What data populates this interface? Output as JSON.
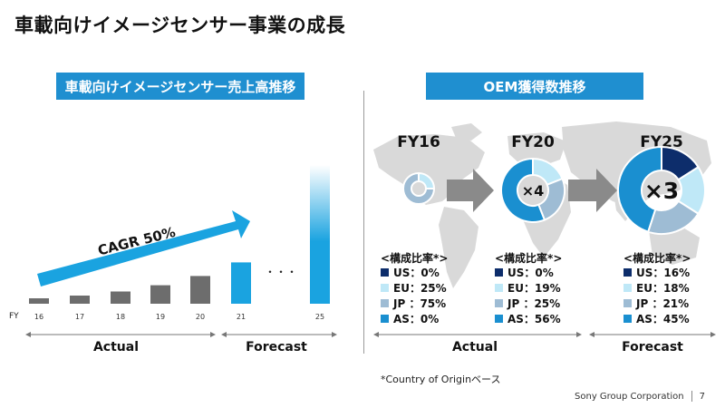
{
  "page": {
    "title": "車載向けイメージセンサー事業の成長",
    "footnote": "*Country of Originベース",
    "footer_company": "Sony Group Corporation",
    "page_number": "7"
  },
  "colors": {
    "banner": "#1f8fd0",
    "actual_bar": "#6d6d6d",
    "forecast_bar": "#1aa3e0",
    "US": "#0d2d6b",
    "EU": "#bfe8f7",
    "JP": "#9ebcd4",
    "AS": "#1a8fd0",
    "arrow_gray": "#8a8a8a",
    "map": "#d9d9d9"
  },
  "chart_data": [
    {
      "type": "bar",
      "title": "車載向けイメージセンサー売上高推移",
      "x_axis_label": "FY",
      "categories": [
        "16",
        "17",
        "18",
        "19",
        "20",
        "21",
        "25"
      ],
      "values": [
        1,
        1.5,
        2.25,
        3.4,
        5.1,
        7.6,
        25.5
      ],
      "ylim": [
        0,
        26
      ],
      "series_status": [
        "Actual",
        "Actual",
        "Actual",
        "Actual",
        "Actual",
        "Forecast",
        "Forecast"
      ],
      "ellipsis_label": "・・・",
      "growth_annotation": "CAGR 50%",
      "range_labels": {
        "actual": "Actual",
        "forecast": "Forecast"
      }
    },
    {
      "type": "pie",
      "title": "OEM獲得数推移",
      "legend_title": "<構成比率*>",
      "step_labels": [
        "×4",
        "×3"
      ],
      "range_labels": {
        "actual": "Actual",
        "forecast": "Forecast"
      },
      "groups": [
        {
          "label": "FY16",
          "relative_size": 1,
          "center_text": "",
          "slices": [
            {
              "name": "US",
              "text": "US：0%",
              "value": 0
            },
            {
              "name": "EU",
              "text": "EU：25%",
              "value": 25
            },
            {
              "name": "JP",
              "text": "JP ：75%",
              "value": 75
            },
            {
              "name": "AS",
              "text": "AS：0%",
              "value": 0
            }
          ]
        },
        {
          "label": "FY20",
          "relative_size": 4,
          "center_text": "×4",
          "slices": [
            {
              "name": "US",
              "text": "US：0%",
              "value": 0
            },
            {
              "name": "EU",
              "text": "EU：19%",
              "value": 19
            },
            {
              "name": "JP",
              "text": "JP ：25%",
              "value": 25
            },
            {
              "name": "AS",
              "text": "AS：56%",
              "value": 56
            }
          ]
        },
        {
          "label": "FY25",
          "relative_size": 12,
          "center_text": "×3",
          "slices": [
            {
              "name": "US",
              "text": "US：16%",
              "value": 16
            },
            {
              "name": "EU",
              "text": "EU：18%",
              "value": 18
            },
            {
              "name": "JP",
              "text": "JP ：21%",
              "value": 21
            },
            {
              "name": "AS",
              "text": "AS：45%",
              "value": 45
            }
          ]
        }
      ]
    }
  ]
}
